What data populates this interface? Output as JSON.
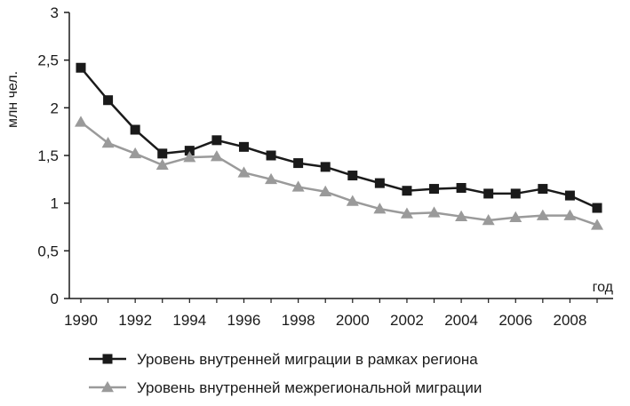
{
  "chart_data": {
    "type": "line",
    "title": "",
    "xlabel": "год",
    "ylabel": "млн чел.",
    "xlim": [
      1990,
      2009
    ],
    "ylim": [
      0,
      3
    ],
    "x": [
      1990,
      1991,
      1992,
      1993,
      1994,
      1995,
      1996,
      1997,
      1998,
      1999,
      2000,
      2001,
      2002,
      2003,
      2004,
      2005,
      2006,
      2007,
      2008,
      2009
    ],
    "x_ticks": [
      1990,
      1992,
      1994,
      1996,
      1998,
      2000,
      2002,
      2004,
      2006,
      2008
    ],
    "x_tick_labels": [
      "1990",
      "1992",
      "1994",
      "1996",
      "1998",
      "2000",
      "2002",
      "2004",
      "2006",
      "2008"
    ],
    "y_ticks": [
      0,
      0.5,
      1,
      1.5,
      2,
      2.5,
      3
    ],
    "y_tick_labels": [
      "0",
      "0,5",
      "1",
      "1,5",
      "2",
      "2,5",
      "3"
    ],
    "grid": false,
    "legend_position": "bottom",
    "series": [
      {
        "name": "Уровень внутренней миграции в рамках региона",
        "color": "#1a1a1a",
        "marker": "square",
        "values": [
          2.42,
          2.08,
          1.77,
          1.52,
          1.55,
          1.66,
          1.59,
          1.5,
          1.42,
          1.38,
          1.29,
          1.21,
          1.13,
          1.15,
          1.16,
          1.1,
          1.1,
          1.15,
          1.08,
          0.95
        ]
      },
      {
        "name": "Уровень внутренней межрегиональной миграции",
        "color": "#9a9a9a",
        "marker": "triangle",
        "values": [
          1.85,
          1.63,
          1.52,
          1.4,
          1.48,
          1.49,
          1.32,
          1.25,
          1.17,
          1.12,
          1.02,
          0.94,
          0.89,
          0.9,
          0.86,
          0.82,
          0.85,
          0.87,
          0.87,
          0.77
        ]
      }
    ]
  }
}
